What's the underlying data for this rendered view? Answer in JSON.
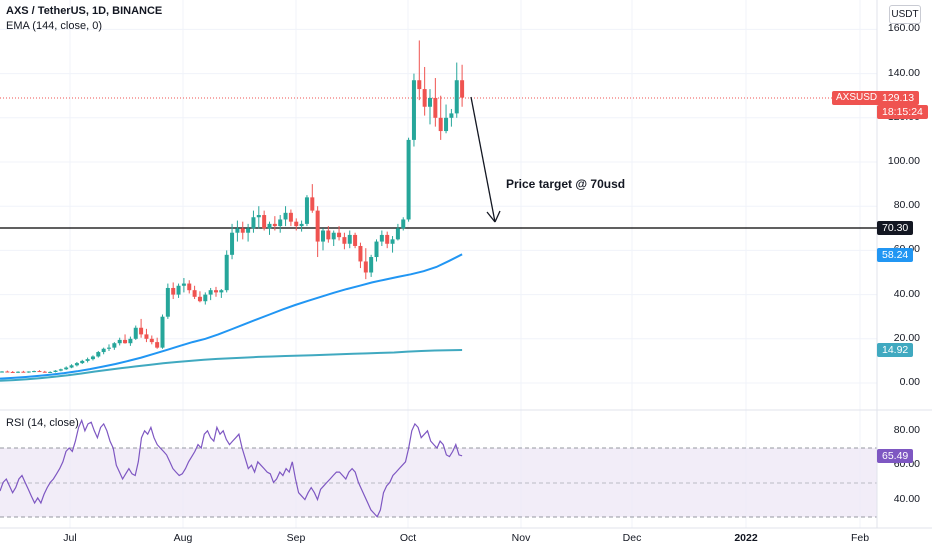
{
  "header": {
    "symbol_line": "AXS / TetherUS, 1D, BINANCE",
    "ema_line": "EMA (144, close, 0)",
    "rsi_line": "RSI (14, close)",
    "currency": "USDT"
  },
  "annotation": {
    "text": "Price target @ 70usd"
  },
  "tags": {
    "symbol": "AXSUSDT",
    "last_price": "129.13",
    "countdown": "18:15:24",
    "target_line": "70.30",
    "ema_fast": "58.24",
    "ema_slow": "14.92",
    "rsi": "65.49"
  },
  "colors": {
    "up": "#26a69a",
    "down": "#ef5350",
    "ema_fast": "#2196f3",
    "ema_slow": "#40a9c0",
    "rsi_line": "#7e57c2",
    "rsi_band": "#ede7f6",
    "target_line": "#000000"
  },
  "chart_data": [
    {
      "type": "candlestick",
      "title": "AXS / TetherUS, 1D, BINANCE",
      "ylabel": "USDT",
      "ylim": [
        -5,
        165
      ],
      "y_ticks": [
        "160.00",
        "140.00",
        "120.00",
        "100.00",
        "80.00",
        "60.00",
        "40.00",
        "20.00",
        "0.00"
      ],
      "x_ticks": [
        "Jul",
        "Aug",
        "Sep",
        "Oct",
        "Nov",
        "Dec",
        "2022",
        "Feb"
      ],
      "last_price": 129.13,
      "horizontal_line": 70.3,
      "annotation": "Price target @ 70usd",
      "candles": [
        [
          5.0,
          5.4,
          4.7,
          5.2
        ],
        [
          5.2,
          5.6,
          4.9,
          5.0
        ],
        [
          5.0,
          5.4,
          4.6,
          4.8
        ],
        [
          4.8,
          5.3,
          4.5,
          5.1
        ],
        [
          5.1,
          5.5,
          4.8,
          4.9
        ],
        [
          4.9,
          5.3,
          4.6,
          5.2
        ],
        [
          5.2,
          5.6,
          4.9,
          5.4
        ],
        [
          5.4,
          5.8,
          5.0,
          5.1
        ],
        [
          5.1,
          5.5,
          4.7,
          4.9
        ],
        [
          4.9,
          5.3,
          4.6,
          5.0
        ],
        [
          5.0,
          5.8,
          4.8,
          5.6
        ],
        [
          5.6,
          6.5,
          5.3,
          6.2
        ],
        [
          6.2,
          7.5,
          5.9,
          7.0
        ],
        [
          7.0,
          8.5,
          6.7,
          8.0
        ],
        [
          8.0,
          9.5,
          7.5,
          9.0
        ],
        [
          9.0,
          10.5,
          8.6,
          10.0
        ],
        [
          10.0,
          11.5,
          9.3,
          10.8
        ],
        [
          10.8,
          12.5,
          10.2,
          12.0
        ],
        [
          12.0,
          14.5,
          11.5,
          14.0
        ],
        [
          14.0,
          16.0,
          13.0,
          15.5
        ],
        [
          15.5,
          17.5,
          14.5,
          16.0
        ],
        [
          16.0,
          18.5,
          15.0,
          18.0
        ],
        [
          18.0,
          20.5,
          17.0,
          19.5
        ],
        [
          19.5,
          22.0,
          17.8,
          18.0
        ],
        [
          18.0,
          21.0,
          16.8,
          20.0
        ],
        [
          20.0,
          26.0,
          19.5,
          25.0
        ],
        [
          25.0,
          29.0,
          20.5,
          22.0
        ],
        [
          22.0,
          24.5,
          18.5,
          20.0
        ],
        [
          20.0,
          21.5,
          17.5,
          18.5
        ],
        [
          18.5,
          20.5,
          15.5,
          16.0
        ],
        [
          16.0,
          31.0,
          15.5,
          30.0
        ],
        [
          30.0,
          45.0,
          29.0,
          43.0
        ],
        [
          43.0,
          45.5,
          38.0,
          40.0
        ],
        [
          40.0,
          45.0,
          38.5,
          44.0
        ],
        [
          44.0,
          47.5,
          41.0,
          45.0
        ],
        [
          45.0,
          46.5,
          40.5,
          42.0
        ],
        [
          42.0,
          44.0,
          38.0,
          39.0
        ],
        [
          39.0,
          41.5,
          36.5,
          37.0
        ],
        [
          37.0,
          41.0,
          35.5,
          40.0
        ],
        [
          40.0,
          43.0,
          37.5,
          42.0
        ],
        [
          42.0,
          43.5,
          39.0,
          41.0
        ],
        [
          41.0,
          42.5,
          38.5,
          42.0
        ],
        [
          42.0,
          60.0,
          41.0,
          58.0
        ],
        [
          58.0,
          72.0,
          56.0,
          68.0
        ],
        [
          68.0,
          73.5,
          64.0,
          70.0
        ],
        [
          70.0,
          73.0,
          65.0,
          68.0
        ],
        [
          68.0,
          72.0,
          64.0,
          70.0
        ],
        [
          70.0,
          78.0,
          68.0,
          75.0
        ],
        [
          75.0,
          80.0,
          70.0,
          76.0
        ],
        [
          76.0,
          78.0,
          69.0,
          70.0
        ],
        [
          70.0,
          73.0,
          67.0,
          72.0
        ],
        [
          72.0,
          75.5,
          69.0,
          71.0
        ],
        [
          71.0,
          76.0,
          68.0,
          74.0
        ],
        [
          74.0,
          80.0,
          71.0,
          77.0
        ],
        [
          77.0,
          78.5,
          71.0,
          73.0
        ],
        [
          73.0,
          74.5,
          69.0,
          71.0
        ],
        [
          71.0,
          73.5,
          68.5,
          72.0
        ],
        [
          72.0,
          85.0,
          71.0,
          84.0
        ],
        [
          84.0,
          90.0,
          77.0,
          78.0
        ],
        [
          78.0,
          80.0,
          57.0,
          64.0
        ],
        [
          64.0,
          70.0,
          60.0,
          69.0
        ],
        [
          69.0,
          71.0,
          63.5,
          65.0
        ],
        [
          65.0,
          69.0,
          62.0,
          68.0
        ],
        [
          68.0,
          71.0,
          64.5,
          66.0
        ],
        [
          66.0,
          68.0,
          60.5,
          63.0
        ],
        [
          63.0,
          69.0,
          61.0,
          67.0
        ],
        [
          67.0,
          68.0,
          61.0,
          62.0
        ],
        [
          62.0,
          63.5,
          52.0,
          55.0
        ],
        [
          55.0,
          61.0,
          47.0,
          50.0
        ],
        [
          50.0,
          58.0,
          48.0,
          57.0
        ],
        [
          57.0,
          65.0,
          55.0,
          64.0
        ],
        [
          64.0,
          69.0,
          62.0,
          67.0
        ],
        [
          67.0,
          68.5,
          61.0,
          63.0
        ],
        [
          63.0,
          66.5,
          59.0,
          65.0
        ],
        [
          65.0,
          72.0,
          64.5,
          70.0
        ],
        [
          70.0,
          75.0,
          69.0,
          74.0
        ],
        [
          74.0,
          111.0,
          73.0,
          110.0
        ],
        [
          110.0,
          140.0,
          107.0,
          137.0
        ],
        [
          137.0,
          155.0,
          128.0,
          133.0
        ],
        [
          133.0,
          143.0,
          121.0,
          125.0
        ],
        [
          125.0,
          133.0,
          117.0,
          129.0
        ],
        [
          129.0,
          138.0,
          116.0,
          120.0
        ],
        [
          120.0,
          130.0,
          110.0,
          114.0
        ],
        [
          114.0,
          126.0,
          113.0,
          120.0
        ],
        [
          120.0,
          124.0,
          116.0,
          122.0
        ],
        [
          122.0,
          145.0,
          120.0,
          137.0
        ],
        [
          137.0,
          144.0,
          125.0,
          129.13
        ]
      ],
      "series": [
        {
          "name": "EMA (144, close, 0)",
          "values": [
            2.0,
            2.3,
            2.7,
            3.2,
            3.8,
            4.5,
            5.3,
            6.3,
            7.4,
            8.6,
            10.0,
            11.5,
            13.2,
            15.0,
            16.8,
            18.5,
            20.0,
            22.0,
            24.2,
            26.5,
            28.8,
            31.0,
            33.2,
            35.3,
            37.2,
            39.0,
            40.8,
            42.5,
            44.0,
            45.5,
            46.8,
            48.0,
            49.2,
            50.6,
            52.5,
            55.3,
            58.24
          ]
        },
        {
          "name": "EMA slow",
          "values": [
            1.0,
            1.3,
            1.7,
            2.2,
            2.8,
            3.5,
            4.3,
            5.2,
            6.0,
            6.8,
            7.5,
            8.2,
            8.9,
            9.5,
            10.0,
            10.5,
            10.9,
            11.2,
            11.5,
            11.8,
            12.0,
            12.2,
            12.4,
            12.6,
            12.8,
            13.0,
            13.2,
            13.4,
            13.6,
            13.8,
            14.2,
            14.5,
            14.7,
            14.8,
            14.92
          ]
        }
      ]
    },
    {
      "type": "line",
      "title": "RSI (14, close)",
      "ylim": [
        28,
        88
      ],
      "y_ticks": [
        "80.00",
        "60.00",
        "40.00"
      ],
      "levels": [
        70,
        50,
        30
      ],
      "series": [
        {
          "name": "RSI (14, close)",
          "values": [
            45,
            50,
            52,
            48,
            44,
            47,
            52,
            54,
            50,
            46,
            42,
            38,
            41,
            38,
            43,
            47,
            50,
            52,
            55,
            58,
            62,
            68,
            70,
            68,
            74,
            82,
            86,
            80,
            84,
            85,
            80,
            76,
            82,
            84,
            80,
            74,
            70,
            60,
            56,
            52,
            55,
            58,
            55,
            54,
            62,
            76,
            80,
            78,
            82,
            76,
            72,
            70,
            68,
            66,
            62,
            58,
            56,
            54,
            55,
            58,
            62,
            65,
            68,
            72,
            70,
            78,
            80,
            76,
            74,
            82,
            78,
            80,
            75,
            72,
            74,
            76,
            78,
            70,
            64,
            58,
            60,
            56,
            62,
            60,
            58,
            56,
            55,
            50,
            52,
            56,
            54,
            58,
            56,
            62,
            52,
            44,
            42,
            40,
            44,
            47,
            44,
            40,
            46,
            48,
            50,
            52,
            54,
            56,
            56,
            54,
            52,
            56,
            58,
            56,
            50,
            46,
            42,
            38,
            34,
            32,
            30,
            34,
            44,
            48,
            50,
            54,
            56,
            58,
            60,
            62,
            70,
            80,
            84,
            82,
            76,
            78,
            80,
            74,
            72,
            70,
            74,
            72,
            66,
            65,
            68,
            72,
            66,
            65.49
          ]
        }
      ]
    }
  ]
}
